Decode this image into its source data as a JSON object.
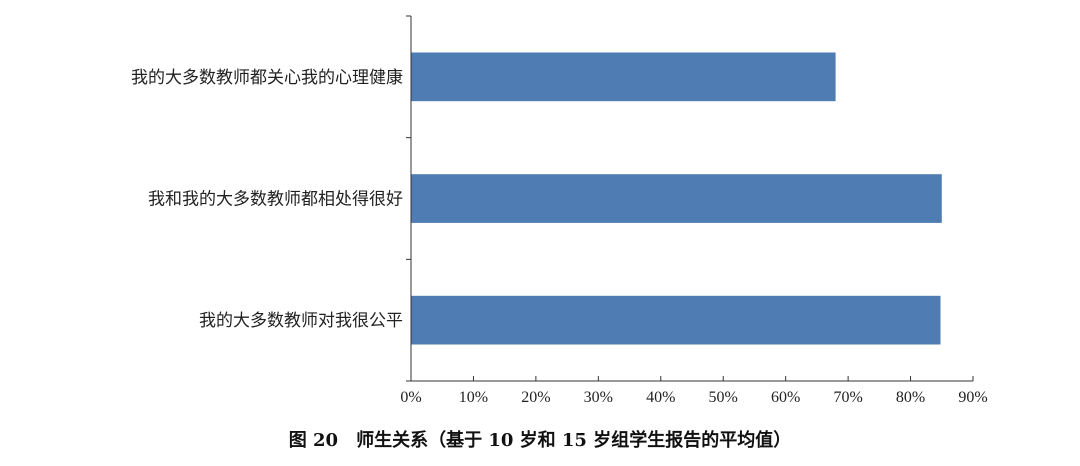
{
  "chart_data": {
    "type": "bar",
    "orientation": "horizontal",
    "categories": [
      "我的大多数教师都关心我的心理健康",
      "我和我的大多数教师都相处得很好",
      "我的大多数教师对我很公平"
    ],
    "values": [
      68,
      85,
      84.8
    ],
    "value_unit": "%",
    "xlim": [
      0,
      90
    ],
    "xticks": [
      "0%",
      "10%",
      "20%",
      "30%",
      "40%",
      "50%",
      "60%",
      "70%",
      "80%",
      "90%"
    ],
    "bar_color": "#4f7db3",
    "grid": false,
    "legend": "none",
    "caption": "图 20　师生关系（基于 10 岁和 15 岁组学生报告的平均值）"
  }
}
